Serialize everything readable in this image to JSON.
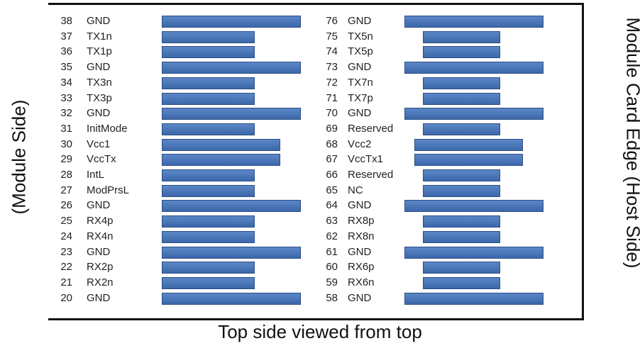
{
  "caption": "Top side viewed from top",
  "labels": {
    "left": "(Module Side)",
    "right": "Module Card Edge (Host Side)"
  },
  "colors": {
    "pad_fill": "#4a77b9",
    "pad_border": "#2c4f86",
    "frame": "#111111"
  },
  "left_pins": [
    {
      "num": "38",
      "name": "GND",
      "kind": "long"
    },
    {
      "num": "37",
      "name": "TX1n",
      "kind": "short"
    },
    {
      "num": "36",
      "name": "TX1p",
      "kind": "short"
    },
    {
      "num": "35",
      "name": "GND",
      "kind": "long"
    },
    {
      "num": "34",
      "name": "TX3n",
      "kind": "short"
    },
    {
      "num": "33",
      "name": "TX3p",
      "kind": "short"
    },
    {
      "num": "32",
      "name": "GND",
      "kind": "long"
    },
    {
      "num": "31",
      "name": "InitMode",
      "kind": "short"
    },
    {
      "num": "30",
      "name": "Vcc1",
      "kind": "medium"
    },
    {
      "num": "29",
      "name": "VccTx",
      "kind": "medium"
    },
    {
      "num": "28",
      "name": "IntL",
      "kind": "short"
    },
    {
      "num": "27",
      "name": "ModPrsL",
      "kind": "short"
    },
    {
      "num": "26",
      "name": "GND",
      "kind": "long"
    },
    {
      "num": "25",
      "name": "RX4p",
      "kind": "short"
    },
    {
      "num": "24",
      "name": "RX4n",
      "kind": "short"
    },
    {
      "num": "23",
      "name": "GND",
      "kind": "long"
    },
    {
      "num": "22",
      "name": "RX2p",
      "kind": "short"
    },
    {
      "num": "21",
      "name": "RX2n",
      "kind": "short"
    },
    {
      "num": "20",
      "name": "GND",
      "kind": "long"
    }
  ],
  "right_pins": [
    {
      "num": "76",
      "name": "GND",
      "kind": "long"
    },
    {
      "num": "75",
      "name": "TX5n",
      "kind": "short"
    },
    {
      "num": "74",
      "name": "TX5p",
      "kind": "short"
    },
    {
      "num": "73",
      "name": "GND",
      "kind": "long"
    },
    {
      "num": "72",
      "name": "TX7n",
      "kind": "short"
    },
    {
      "num": "71",
      "name": "TX7p",
      "kind": "short"
    },
    {
      "num": "70",
      "name": "GND",
      "kind": "long"
    },
    {
      "num": "69",
      "name": "Reserved",
      "kind": "short"
    },
    {
      "num": "68",
      "name": "Vcc2",
      "kind": "medium"
    },
    {
      "num": "67",
      "name": "VccTx1",
      "kind": "medium"
    },
    {
      "num": "66",
      "name": "Reserved",
      "kind": "short"
    },
    {
      "num": "65",
      "name": "NC",
      "kind": "short"
    },
    {
      "num": "64",
      "name": "GND",
      "kind": "long"
    },
    {
      "num": "63",
      "name": "RX8p",
      "kind": "short"
    },
    {
      "num": "62",
      "name": "RX8n",
      "kind": "short"
    },
    {
      "num": "61",
      "name": "GND",
      "kind": "long"
    },
    {
      "num": "60",
      "name": "RX6p",
      "kind": "short"
    },
    {
      "num": "59",
      "name": "RX6n",
      "kind": "short"
    },
    {
      "num": "58",
      "name": "GND",
      "kind": "long"
    }
  ]
}
